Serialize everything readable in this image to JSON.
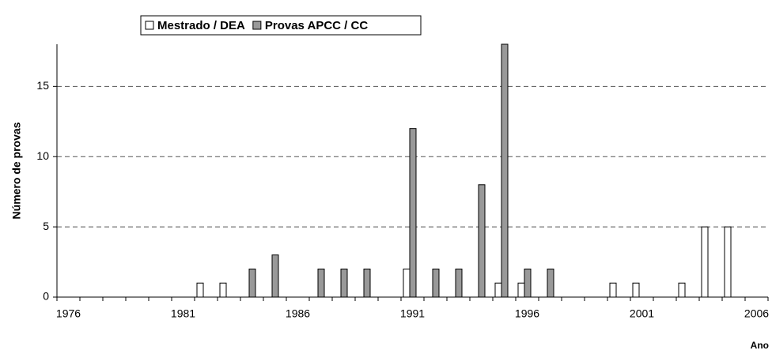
{
  "chart_data": {
    "type": "bar",
    "categories": [
      "1976",
      null,
      null,
      null,
      null,
      "1981",
      null,
      null,
      null,
      null,
      "1986",
      null,
      null,
      null,
      null,
      "1991",
      null,
      null,
      null,
      null,
      "1996",
      null,
      null,
      null,
      null,
      "2001",
      null,
      null,
      null,
      null,
      "2006"
    ],
    "series": [
      {
        "name": "Mestrado / DEA",
        "color": "#ffffff",
        "values": [
          0,
          0,
          0,
          0,
          0,
          0,
          1,
          1,
          0,
          0,
          0,
          0,
          0,
          0,
          0,
          2,
          0,
          0,
          0,
          1,
          1,
          0,
          0,
          0,
          1,
          1,
          0,
          1,
          5,
          5,
          0
        ]
      },
      {
        "name": "Provas APCC / CC",
        "color": "#999999",
        "values": [
          0,
          0,
          0,
          0,
          0,
          0,
          0,
          0,
          2,
          3,
          0,
          2,
          2,
          2,
          0,
          12,
          2,
          2,
          8,
          18,
          2,
          2,
          0,
          0,
          0,
          0,
          0,
          0,
          0,
          0,
          0
        ]
      }
    ],
    "ylim": [
      0,
      18
    ],
    "yticks": [
      0,
      5,
      10,
      15
    ],
    "y_label": "Número de provas",
    "x_label": "Ano",
    "grid": true,
    "legend": "top"
  }
}
